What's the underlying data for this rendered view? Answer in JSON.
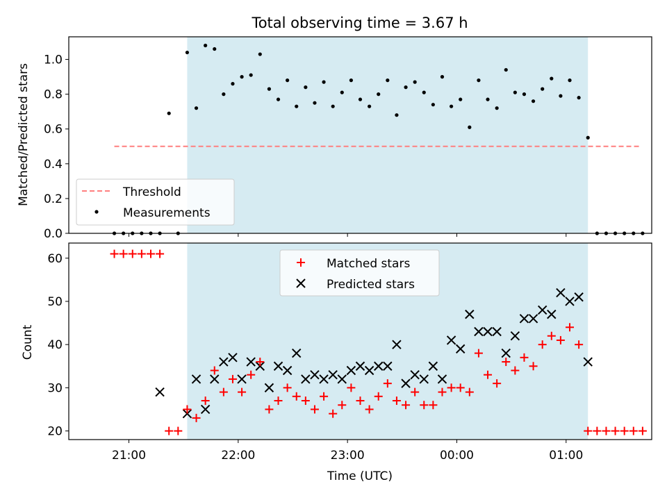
{
  "chart_data": [
    {
      "type": "scatter",
      "title": "Total observing time = 3.67 h",
      "xlabel": "",
      "ylabel": "Matched/Predicted stars",
      "ylim": [
        0,
        1.13
      ],
      "yticks": [
        0.0,
        0.2,
        0.4,
        0.6,
        0.8,
        1.0
      ],
      "ytick_labels": [
        "0.0",
        "0.2",
        "0.4",
        "0.6",
        "0.8",
        "1.0"
      ],
      "shaded_span": [
        "21:32",
        "01:12"
      ],
      "threshold": {
        "name": "Threshold",
        "y": 0.5,
        "x_start": "20:52",
        "x_end": "01:40",
        "color": "#ff7f7f"
      },
      "series": [
        {
          "name": "Measurements",
          "color": "#000000",
          "x": [
            "20:52",
            "20:57",
            "21:02",
            "21:07",
            "21:12",
            "21:17",
            "21:22",
            "21:27",
            "21:32",
            "21:37",
            "21:42",
            "21:47",
            "21:52",
            "21:57",
            "22:02",
            "22:07",
            "22:12",
            "22:17",
            "22:22",
            "22:27",
            "22:32",
            "22:37",
            "22:42",
            "22:47",
            "22:52",
            "22:57",
            "23:02",
            "23:07",
            "23:12",
            "23:17",
            "23:22",
            "23:27",
            "23:32",
            "23:37",
            "23:42",
            "23:47",
            "23:52",
            "23:57",
            "00:02",
            "00:07",
            "00:12",
            "00:17",
            "00:22",
            "00:27",
            "00:32",
            "00:37",
            "00:42",
            "00:47",
            "00:52",
            "00:57",
            "01:02",
            "01:07",
            "01:12",
            "01:17",
            "01:22",
            "01:27",
            "01:32",
            "01:37",
            "01:42"
          ],
          "y": [
            0,
            0,
            0,
            0,
            0,
            0,
            0.69,
            0,
            1.04,
            0.72,
            1.08,
            1.06,
            0.8,
            0.86,
            0.9,
            0.91,
            1.03,
            0.83,
            0.77,
            0.88,
            0.73,
            0.84,
            0.75,
            0.87,
            0.73,
            0.81,
            0.88,
            0.77,
            0.73,
            0.8,
            0.88,
            0.68,
            0.84,
            0.87,
            0.81,
            0.74,
            0.9,
            0.73,
            0.77,
            0.61,
            0.88,
            0.77,
            0.72,
            0.94,
            0.81,
            0.8,
            0.76,
            0.83,
            0.89,
            0.79,
            0.88,
            0.78,
            0.55,
            0,
            0,
            0,
            0,
            0,
            0
          ]
        }
      ],
      "legend": {
        "entries": [
          "Threshold",
          "Measurements"
        ],
        "position": "lower-left"
      }
    },
    {
      "type": "scatter",
      "xlabel": "Time (UTC)",
      "ylabel": "Count",
      "ylim": [
        18,
        63.5
      ],
      "yticks": [
        20,
        30,
        40,
        50,
        60
      ],
      "ytick_labels": [
        "20",
        "30",
        "40",
        "50",
        "60"
      ],
      "xlim": [
        "20:27",
        "01:47"
      ],
      "xticks": [
        "21:00",
        "22:00",
        "23:00",
        "00:00",
        "01:00"
      ],
      "xtick_labels": [
        "21:00",
        "22:00",
        "23:00",
        "00:00",
        "01:00"
      ],
      "shaded_span": [
        "21:32",
        "01:12"
      ],
      "series": [
        {
          "name": "Matched stars",
          "marker": "+",
          "color": "#ff0000",
          "x": [
            "20:52",
            "20:57",
            "21:02",
            "21:07",
            "21:12",
            "21:17",
            "21:22",
            "21:27",
            "21:32",
            "21:37",
            "21:42",
            "21:47",
            "21:52",
            "21:57",
            "22:02",
            "22:07",
            "22:12",
            "22:17",
            "22:22",
            "22:27",
            "22:32",
            "22:37",
            "22:42",
            "22:47",
            "22:52",
            "22:57",
            "23:02",
            "23:07",
            "23:12",
            "23:17",
            "23:22",
            "23:27",
            "23:32",
            "23:37",
            "23:42",
            "23:47",
            "23:52",
            "23:57",
            "00:02",
            "00:07",
            "00:12",
            "00:17",
            "00:22",
            "00:27",
            "00:32",
            "00:37",
            "00:42",
            "00:47",
            "00:52",
            "00:57",
            "01:02",
            "01:07",
            "01:12",
            "01:17",
            "01:22",
            "01:27",
            "01:32",
            "01:37",
            "01:42"
          ],
          "y": [
            61,
            61,
            61,
            61,
            61,
            61,
            20,
            20,
            25,
            23,
            27,
            34,
            29,
            32,
            29,
            33,
            36,
            25,
            27,
            30,
            28,
            27,
            25,
            28,
            24,
            26,
            30,
            27,
            25,
            28,
            31,
            27,
            26,
            29,
            26,
            26,
            29,
            30,
            30,
            29,
            38,
            33,
            31,
            36,
            34,
            37,
            35,
            40,
            42,
            41,
            44,
            40,
            20,
            20,
            20,
            20,
            20,
            20,
            20
          ]
        },
        {
          "name": "Predicted stars",
          "marker": "x",
          "color": "#000000",
          "x": [
            "21:17",
            "21:32",
            "21:37",
            "21:42",
            "21:47",
            "21:52",
            "21:57",
            "22:02",
            "22:07",
            "22:12",
            "22:17",
            "22:22",
            "22:27",
            "22:32",
            "22:37",
            "22:42",
            "22:47",
            "22:52",
            "22:57",
            "23:02",
            "23:07",
            "23:12",
            "23:17",
            "23:22",
            "23:27",
            "23:32",
            "23:37",
            "23:42",
            "23:47",
            "23:52",
            "23:57",
            "00:02",
            "00:07",
            "00:12",
            "00:17",
            "00:22",
            "00:27",
            "00:32",
            "00:37",
            "00:42",
            "00:47",
            "00:52",
            "00:57",
            "01:02",
            "01:07",
            "01:12"
          ],
          "y": [
            29,
            24,
            32,
            25,
            32,
            36,
            37,
            32,
            36,
            35,
            30,
            35,
            34,
            38,
            32,
            33,
            32,
            33,
            32,
            34,
            35,
            34,
            35,
            35,
            40,
            31,
            33,
            32,
            35,
            32,
            41,
            39,
            47,
            43,
            43,
            43,
            38,
            42,
            46,
            46,
            48,
            47,
            52,
            50,
            51,
            36
          ]
        }
      ],
      "legend": {
        "entries": [
          "Matched stars",
          "Predicted stars"
        ],
        "position": "upper-center"
      }
    }
  ],
  "colors": {
    "shade": "#add8e6",
    "shade_alpha": 0.5,
    "threshold": "#ff7f7f",
    "matched": "#ff0000",
    "predicted": "#000000",
    "measurement": "#000000"
  }
}
